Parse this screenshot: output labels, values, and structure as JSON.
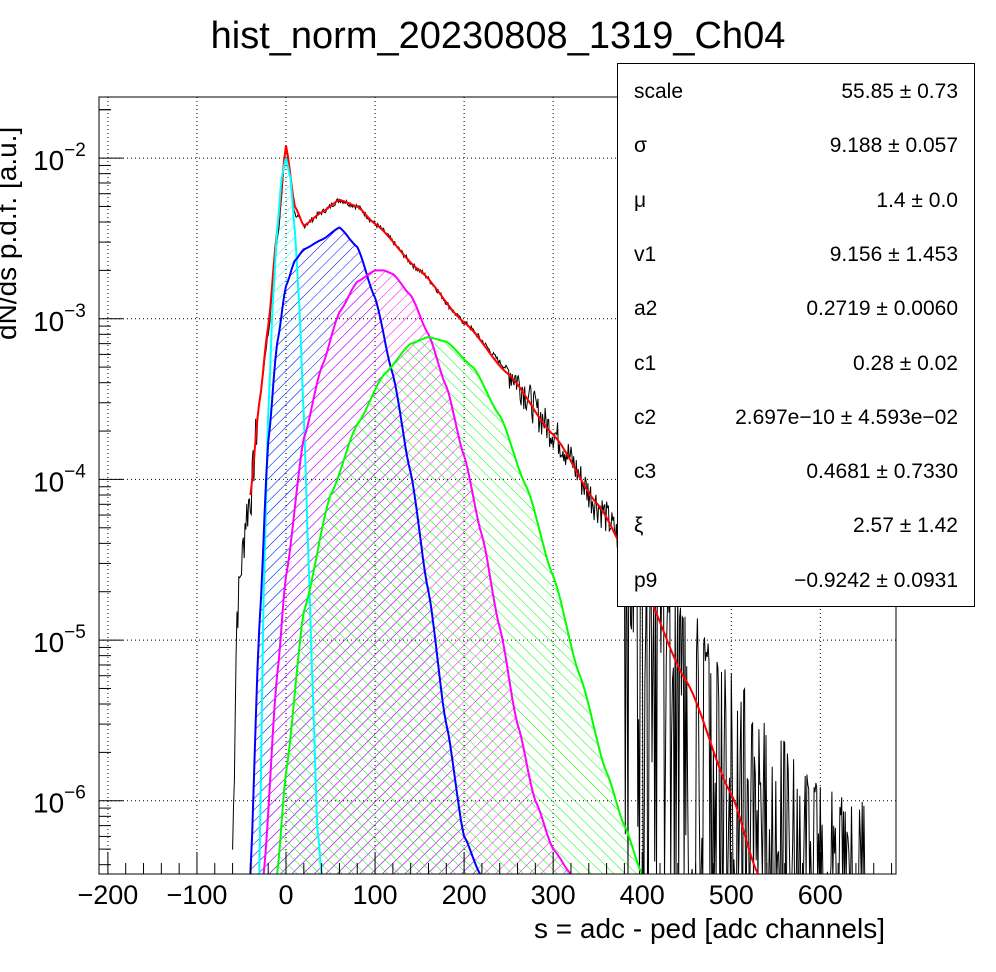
{
  "chart_data": {
    "type": "line",
    "title": "hist_norm_20230808_1319_Ch04",
    "xlabel": "s = adc - ped [adc channels]",
    "ylabel": "dN/ds p.d.f. [a.u.]",
    "xlim": [
      -210,
      685
    ],
    "ylim": [
      3.5e-07,
      0.024
    ],
    "yscale": "log",
    "grid": true,
    "x_ticks": [
      "−200",
      "−100",
      "0",
      "100",
      "200",
      "300",
      "400",
      "500",
      "600"
    ],
    "y_ticks": [
      {
        "base": "10",
        "exp": "−6"
      },
      {
        "base": "10",
        "exp": "−5"
      },
      {
        "base": "10",
        "exp": "−4"
      },
      {
        "base": "10",
        "exp": "−3"
      },
      {
        "base": "10",
        "exp": "−2"
      }
    ],
    "series": [
      {
        "role": "data histogram",
        "color": "#000000",
        "x": [
          -60,
          -55,
          -50,
          -45,
          -40,
          -30,
          -20,
          -10,
          0,
          10,
          20,
          40,
          60,
          80,
          100,
          150,
          200,
          250,
          300,
          350,
          400,
          450,
          500,
          550,
          600,
          650
        ],
        "y": [
          5e-07,
          1.5e-05,
          3e-05,
          6e-05,
          8e-05,
          0.0003,
          0.0008,
          0.003,
          0.0115,
          0.0045,
          0.0038,
          0.0046,
          0.0055,
          0.005,
          0.0039,
          0.002,
          0.00095,
          0.00048,
          0.0002,
          7e-05,
          2.5e-05,
          8e-06,
          3e-06,
          1.2e-06,
          6e-07,
          5e-07
        ]
      },
      {
        "role": "total fit",
        "color": "#ff0000",
        "x": [
          -40,
          -30,
          -20,
          -10,
          0,
          10,
          20,
          40,
          60,
          80,
          100,
          150,
          200,
          250,
          300,
          350,
          400,
          450,
          500,
          530
        ],
        "y": [
          8e-05,
          0.0003,
          0.0009,
          0.0035,
          0.012,
          0.005,
          0.0038,
          0.0046,
          0.0055,
          0.005,
          0.0039,
          0.002,
          0.00095,
          0.00045,
          0.00019,
          7e-05,
          2.2e-05,
          5.5e-06,
          1.1e-06,
          3.5e-07
        ]
      },
      {
        "role": "0 p.e. component",
        "color": "#00ffff",
        "x": [
          -30,
          -25,
          -20,
          -15,
          -10,
          -5,
          0,
          5,
          10,
          15,
          20,
          25,
          30,
          35,
          40
        ],
        "y": [
          3.5e-07,
          2e-05,
          0.00025,
          0.0012,
          0.0035,
          0.0075,
          0.01,
          0.0075,
          0.0035,
          0.0012,
          0.00025,
          3.5e-05,
          5e-06,
          7e-07,
          3.5e-07
        ]
      },
      {
        "role": "1 p.e. component",
        "color": "#0000ff",
        "x": [
          -40,
          -30,
          -20,
          -10,
          0,
          10,
          20,
          40,
          60,
          80,
          100,
          120,
          140,
          160,
          180,
          200,
          218
        ],
        "y": [
          3.5e-07,
          1.2e-05,
          0.00017,
          0.0007,
          0.0016,
          0.0023,
          0.0027,
          0.0031,
          0.0037,
          0.0028,
          0.00135,
          0.00045,
          0.00011,
          2e-05,
          3e-06,
          6e-07,
          3.5e-07
        ]
      },
      {
        "role": "2 p.e. component",
        "color": "#ff00ff",
        "x": [
          -25,
          -10,
          0,
          20,
          40,
          60,
          80,
          100,
          110,
          120,
          140,
          160,
          180,
          200,
          220,
          240,
          260,
          280,
          300,
          320
        ],
        "y": [
          3.5e-07,
          6e-06,
          2.5e-05,
          0.00018,
          0.0005,
          0.0011,
          0.0017,
          0.002,
          0.002,
          0.0019,
          0.0014,
          0.0008,
          0.00038,
          0.00014,
          4.5e-05,
          1.2e-05,
          3e-06,
          1e-06,
          5e-07,
          3.5e-07
        ]
      },
      {
        "role": "3 p.e. component",
        "color": "#00ff00",
        "x": [
          -10,
          0,
          20,
          50,
          80,
          110,
          140,
          160,
          180,
          210,
          240,
          270,
          300,
          330,
          360,
          380,
          400
        ],
        "y": [
          3.5e-07,
          1.5e-06,
          1.5e-05,
          8e-05,
          0.00022,
          0.00045,
          0.0007,
          0.00077,
          0.00072,
          0.0005,
          0.00025,
          9e-05,
          2.5e-05,
          6e-06,
          1.5e-06,
          7e-07,
          3.5e-07
        ]
      }
    ],
    "stats_box": {
      "position": "top-right",
      "rows": [
        {
          "name": "scale",
          "value": "55.85 ± 0.73"
        },
        {
          "name": "σ",
          "value": "9.188 ± 0.057"
        },
        {
          "name": "μ",
          "value": "1.4 ± 0.0"
        },
        {
          "name": "v1",
          "value": "9.156 ± 1.453"
        },
        {
          "name": "a2",
          "value": "0.2719 ± 0.0060"
        },
        {
          "name": "c1",
          "value": "0.28 ± 0.02"
        },
        {
          "name": "c2",
          "value": "2.697e−10 ± 4.593e−02"
        },
        {
          "name": "c3",
          "value": "0.4681 ± 0.7330"
        },
        {
          "name": "ξ",
          "value": "2.57 ± 1.42"
        },
        {
          "name": "p9",
          "value": "−0.9242 ± 0.0931"
        }
      ]
    }
  }
}
